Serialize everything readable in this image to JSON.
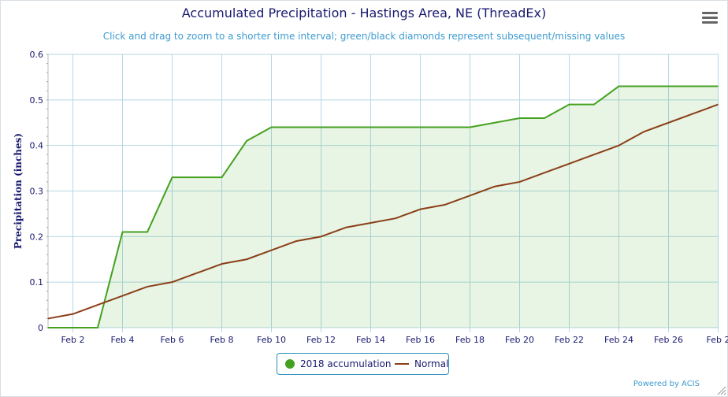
{
  "chart_data": {
    "type": "area",
    "title": "Accumulated Precipitation - Hastings Area, NE (ThreadEx)",
    "subtitle": "Click and drag to zoom to a shorter time interval; green/black diamonds represent subsequent/missing values",
    "ylabel": "Precipitation (inches)",
    "xlabel": "",
    "ylim": [
      0,
      0.6
    ],
    "y_ticks": [
      "0",
      "0.1",
      "0.2",
      "0.3",
      "0.4",
      "0.5",
      "0.6"
    ],
    "x_ticks": [
      "Feb 2",
      "Feb 4",
      "Feb 6",
      "Feb 8",
      "Feb 10",
      "Feb 12",
      "Feb 14",
      "Feb 16",
      "Feb 18",
      "Feb 20",
      "Feb 22",
      "Feb 24",
      "Feb 26",
      "Feb 2"
    ],
    "x": [
      "Feb 1",
      "Feb 2",
      "Feb 3",
      "Feb 4",
      "Feb 5",
      "Feb 6",
      "Feb 7",
      "Feb 8",
      "Feb 9",
      "Feb 10",
      "Feb 11",
      "Feb 12",
      "Feb 13",
      "Feb 14",
      "Feb 15",
      "Feb 16",
      "Feb 17",
      "Feb 18",
      "Feb 19",
      "Feb 20",
      "Feb 21",
      "Feb 22",
      "Feb 23",
      "Feb 24",
      "Feb 25",
      "Feb 26",
      "Feb 27",
      "Feb 28"
    ],
    "series": [
      {
        "name": "2018 accumulation",
        "color": "#44a11f",
        "values": [
          0,
          0,
          0,
          0.21,
          0.21,
          0.33,
          0.33,
          0.33,
          0.41,
          0.44,
          0.44,
          0.44,
          0.44,
          0.44,
          0.44,
          0.44,
          0.44,
          0.44,
          0.45,
          0.46,
          0.46,
          0.49,
          0.49,
          0.53,
          0.53,
          0.53,
          0.53,
          0.53
        ]
      },
      {
        "name": "Normal",
        "color": "#8a3f17",
        "values": [
          0.02,
          0.03,
          0.05,
          0.07,
          0.09,
          0.1,
          0.12,
          0.14,
          0.15,
          0.17,
          0.19,
          0.2,
          0.22,
          0.23,
          0.24,
          0.26,
          0.27,
          0.29,
          0.31,
          0.32,
          0.34,
          0.36,
          0.38,
          0.4,
          0.43,
          0.45,
          0.47,
          0.49
        ]
      }
    ],
    "grid": true,
    "legend_position": "bottom-center"
  },
  "legend": {
    "item1": "2018 accumulation",
    "item2": "Normal"
  },
  "credit": "Powered by ACIS"
}
